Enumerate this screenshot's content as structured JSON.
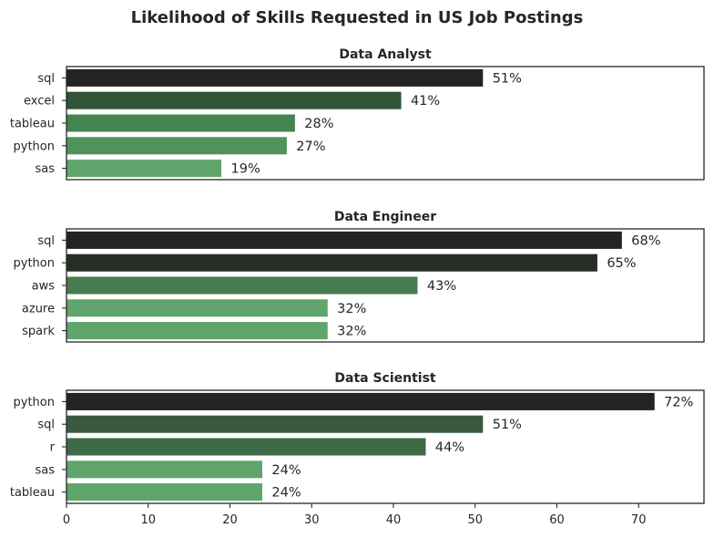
{
  "title": "Likelihood of Skills Requested in US Job Postings",
  "chart_data": [
    {
      "type": "bar",
      "orientation": "horizontal",
      "title": "Data Analyst",
      "categories": [
        "sql",
        "excel",
        "tableau",
        "python",
        "sas"
      ],
      "values": [
        51,
        41,
        28,
        27,
        19
      ],
      "data_labels": [
        "51%",
        "41%",
        "28%",
        "27%",
        "19%"
      ],
      "xlim": [
        0,
        78
      ],
      "colors": [
        "#232323",
        "#2f5438",
        "#43844f",
        "#4f935b",
        "#5fa56c"
      ]
    },
    {
      "type": "bar",
      "orientation": "horizontal",
      "title": "Data Engineer",
      "categories": [
        "sql",
        "python",
        "aws",
        "azure",
        "spark"
      ],
      "values": [
        68,
        65,
        43,
        32,
        32
      ],
      "data_labels": [
        "68%",
        "65%",
        "43%",
        "32%",
        "32%"
      ],
      "xlim": [
        0,
        78
      ],
      "colors": [
        "#232323",
        "#262d27",
        "#477b50",
        "#5fa56c",
        "#5fa56c"
      ]
    },
    {
      "type": "bar",
      "orientation": "horizontal",
      "title": "Data Scientist",
      "categories": [
        "python",
        "sql",
        "r",
        "sas",
        "tableau"
      ],
      "values": [
        72,
        51,
        44,
        24,
        24
      ],
      "data_labels": [
        "72%",
        "51%",
        "44%",
        "24%",
        "24%"
      ],
      "xlim": [
        0,
        78
      ],
      "xticks": [
        0,
        10,
        20,
        30,
        40,
        50,
        60,
        70
      ],
      "colors": [
        "#232323",
        "#38593f",
        "#3f6a48",
        "#5fa56c",
        "#5fa56c"
      ]
    }
  ]
}
